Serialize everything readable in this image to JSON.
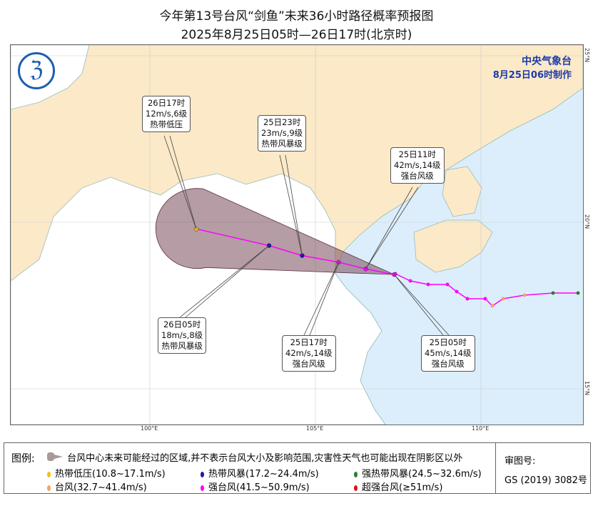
{
  "title": "今年第13号台风“剑鱼”未来36小时路径概率预报图",
  "subtitle": "2025年8月25日05时—26日17时(北京时)",
  "agency": "中央气象台",
  "issued": "8月25日06时制作",
  "lon_ticks": [
    {
      "value": 100,
      "label": "100°E"
    },
    {
      "value": 105,
      "label": "105°E"
    },
    {
      "value": 110,
      "label": "110°E"
    }
  ],
  "lat_ticks": [
    {
      "value": 25,
      "label": "25°N"
    },
    {
      "value": 20,
      "label": "20°N"
    },
    {
      "value": 15,
      "label": "15°N"
    }
  ],
  "colors": {
    "sea": "#dceefb",
    "land": "#fbe9c8",
    "cone": "#7a4a5a",
    "forecast_track": "#ff00ff",
    "past_track": "#ff00ff"
  },
  "forecast": [
    {
      "time": "25日05时",
      "wind": "45m/s,14级",
      "level": "强台风级",
      "lon": 107.38,
      "lat": 18.43,
      "color": "#ff00ff"
    },
    {
      "time": "25日11时",
      "wind": "42m/s,14级",
      "level": "强台风级",
      "lon": 106.52,
      "lat": 18.6,
      "color": "#ff00ff"
    },
    {
      "time": "25日17时",
      "wind": "42m/s,14级",
      "level": "强台风级",
      "lon": 105.7,
      "lat": 18.8,
      "color": "#ff00ff"
    },
    {
      "time": "25日23时",
      "wind": "23m/s,9级",
      "level": "热带风暴级",
      "lon": 104.6,
      "lat": 19.0,
      "color": "#1a1aa8"
    },
    {
      "time": "26日05时",
      "wind": "18m/s,8级",
      "level": "热带风暴级",
      "lon": 103.6,
      "lat": 19.3,
      "color": "#1a1aa8"
    },
    {
      "time": "26日17时",
      "wind": "12m/s,6级",
      "level": "热带低压",
      "lon": 101.4,
      "lat": 19.8,
      "color": "#f0c020"
    }
  ],
  "legend": {
    "title": "图例:",
    "cone_text": "台风中心未来可能经过的区域,并不表示台风大小及影响范围,灾害性天气也可能出现在阴影区以外",
    "items": [
      {
        "label": "热带低压(10.8~17.1m/s)",
        "color": "#f0c020"
      },
      {
        "label": "热带风暴(17.2~24.4m/s)",
        "color": "#1a1aa8"
      },
      {
        "label": "强热带风暴(24.5~32.6m/s)",
        "color": "#2e7d32"
      },
      {
        "label": "台风(32.7~41.4m/s)",
        "color": "#f4a460"
      },
      {
        "label": "强台风(41.5~50.9m/s)",
        "color": "#ff00ff"
      },
      {
        "label": "超强台风(≥51m/s)",
        "color": "#e01010"
      }
    ],
    "review_label": "审图号:",
    "review_no": "GS (2019) 3082号"
  }
}
